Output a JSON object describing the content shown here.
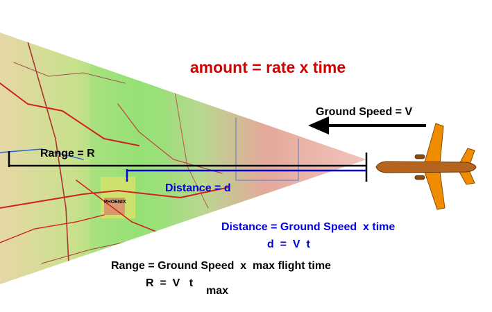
{
  "headline": "amount = rate x time",
  "ground_speed_label": "Ground Speed = V",
  "range_label": "Range = R",
  "distance_label": "Distance =  d",
  "map_city_label": "PHOENIX",
  "distance_equation": "Distance = Ground Speed  x time",
  "distance_symbolic": "d  =  V  t",
  "range_equation": "Range = Ground Speed  x  max flight time",
  "range_symbolic_main": "R  =  V   t",
  "range_symbolic_subscript": "max",
  "colors": {
    "headline": "#d40000",
    "distance": "#0000dd",
    "range": "#000000",
    "airplane_body": "#b5651d",
    "airplane_wing": "#f08c00"
  }
}
